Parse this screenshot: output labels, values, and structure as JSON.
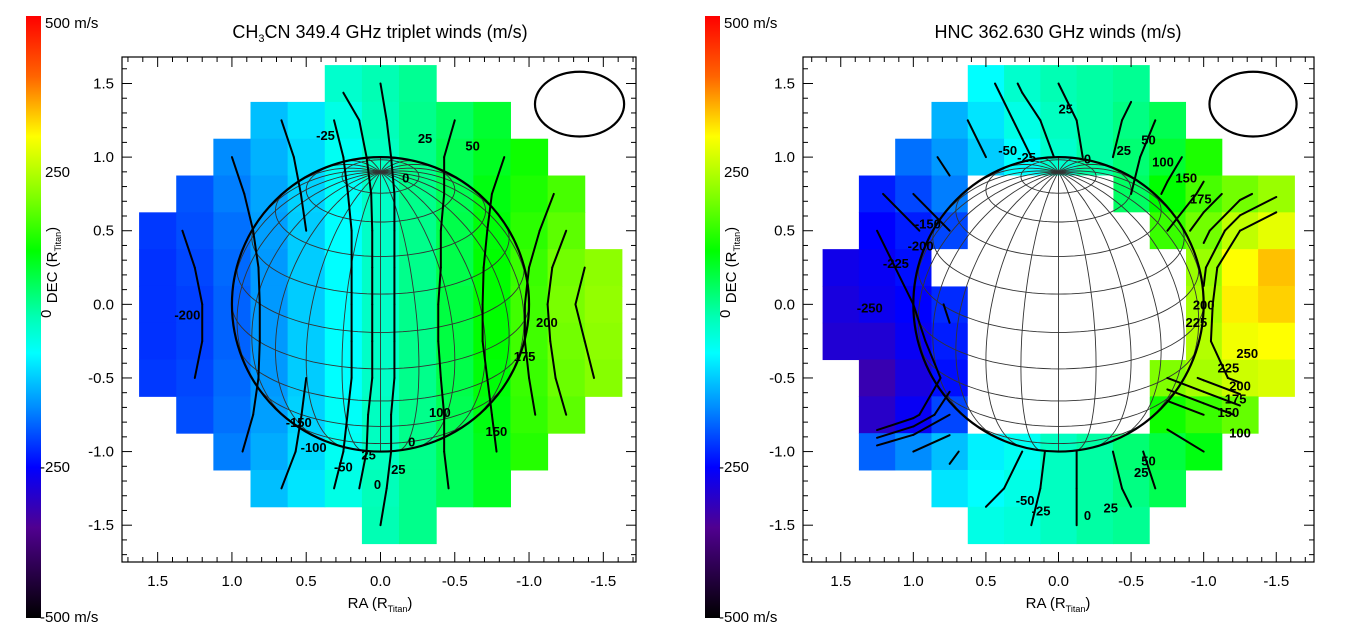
{
  "chart_data": [
    {
      "type": "heatmap",
      "title": "CH3CN 349.4 GHz triplet winds (m/s)",
      "title_parts": {
        "pre": "CH",
        "sub": "3",
        "post": "CN 349.4 GHz triplet winds (m/s)"
      },
      "xlabel": "RA (R",
      "xlabel_sub": "Titan",
      "xlabel_close": ")",
      "ylabel": "DEC (R",
      "ylabel_sub": "Titan",
      "ylabel_close": ")",
      "xlim": [
        1.74,
        -1.72
      ],
      "ylim": [
        -1.75,
        1.68
      ],
      "xticks": [
        "1.5",
        "1.0",
        "0.5",
        "0.0",
        "-0.5",
        "-1.0",
        "-1.5"
      ],
      "xtick_values": [
        1.5,
        1.0,
        0.5,
        0.0,
        -0.5,
        -1.0,
        -1.5
      ],
      "yticks": [
        "1.5",
        "1.0",
        "0.5",
        "0.0",
        "-0.5",
        "-1.0",
        "-1.5"
      ],
      "ytick_values": [
        1.5,
        1.0,
        0.5,
        0.0,
        -0.5,
        -1.0,
        -1.5
      ],
      "colorbar": {
        "labels": [
          "500 m/s",
          "250",
          "0",
          "-250",
          "-500 m/s"
        ],
        "range": [
          -500,
          500
        ]
      },
      "grid_ra": [
        1.5,
        1.25,
        1.0,
        0.75,
        0.5,
        0.25,
        0,
        -0.25,
        -0.5,
        -0.75,
        -1.0,
        -1.25,
        -1.5
      ],
      "grid_dec": [
        1.5,
        1.25,
        1.0,
        0.75,
        0.5,
        0.25,
        0,
        -0.25,
        -0.5,
        -0.75,
        -1.0,
        -1.25,
        -1.5
      ],
      "values": [
        [
          null,
          null,
          null,
          null,
          null,
          -20,
          0,
          20,
          null,
          null,
          null,
          null,
          null
        ],
        [
          null,
          null,
          null,
          -110,
          -80,
          -40,
          -5,
          25,
          50,
          80,
          null,
          null,
          null
        ],
        [
          null,
          null,
          -150,
          -120,
          -90,
          -50,
          -10,
          25,
          60,
          90,
          120,
          null,
          null
        ],
        [
          null,
          -190,
          -160,
          -130,
          -95,
          -55,
          -15,
          25,
          60,
          100,
          130,
          160,
          null
        ],
        [
          -210,
          -195,
          -170,
          -135,
          -100,
          -60,
          -15,
          25,
          65,
          105,
          140,
          175,
          null
        ],
        [
          -215,
          -200,
          -175,
          -140,
          -100,
          -60,
          -15,
          25,
          65,
          110,
          150,
          190,
          210
        ],
        [
          -215,
          -205,
          -180,
          -140,
          -100,
          -60,
          -15,
          25,
          70,
          110,
          155,
          195,
          215
        ],
        [
          -215,
          -205,
          -180,
          -140,
          -100,
          -60,
          -15,
          25,
          70,
          110,
          155,
          190,
          210
        ],
        [
          -210,
          -200,
          -175,
          -140,
          -100,
          -60,
          -15,
          25,
          65,
          105,
          150,
          185,
          205
        ],
        [
          null,
          -195,
          -170,
          -135,
          -95,
          -55,
          -10,
          25,
          60,
          100,
          145,
          175,
          null
        ],
        [
          null,
          null,
          -160,
          -125,
          -90,
          -50,
          -10,
          25,
          60,
          95,
          135,
          null,
          null
        ],
        [
          null,
          null,
          null,
          -110,
          -80,
          -40,
          -5,
          25,
          55,
          90,
          null,
          null,
          null
        ],
        [
          null,
          null,
          null,
          null,
          null,
          null,
          0,
          25,
          null,
          null,
          null,
          null,
          null
        ]
      ],
      "contour_levels": [
        -200,
        -150,
        -100,
        -50,
        -25,
        0,
        25,
        50,
        100,
        150,
        175,
        200
      ],
      "contour_labels": [
        {
          "text": "-25",
          "ra": 0.37,
          "dec": 1.15
        },
        {
          "text": "25",
          "ra": -0.3,
          "dec": 1.13
        },
        {
          "text": "50",
          "ra": -0.62,
          "dec": 1.08
        },
        {
          "text": "0",
          "ra": -0.17,
          "dec": 0.86
        },
        {
          "text": "-200",
          "ra": 1.3,
          "dec": -0.07
        },
        {
          "text": "200",
          "ra": -1.12,
          "dec": -0.12
        },
        {
          "text": "175",
          "ra": -0.97,
          "dec": -0.35
        },
        {
          "text": "100",
          "ra": -0.4,
          "dec": -0.73
        },
        {
          "text": "150",
          "ra": -0.78,
          "dec": -0.86
        },
        {
          "text": "-150",
          "ra": 0.55,
          "dec": -0.8
        },
        {
          "text": "-100",
          "ra": 0.45,
          "dec": -0.97
        },
        {
          "text": "-50",
          "ra": 0.25,
          "dec": -1.1
        },
        {
          "text": "25",
          "ra": 0.08,
          "dec": -1.02
        },
        {
          "text": "0",
          "ra": 0.02,
          "dec": -1.22
        },
        {
          "text": "25",
          "ra": -0.12,
          "dec": -1.12
        },
        {
          "text": "0",
          "ra": -0.21,
          "dec": -0.93
        }
      ],
      "disk_masked": false
    },
    {
      "type": "heatmap",
      "title": "HNC 362.630 GHz winds (m/s)",
      "title_parts": {
        "pre": "HNC 362.630 GHz winds (m/s)",
        "sub": "",
        "post": ""
      },
      "xlabel": "RA (R",
      "xlabel_sub": "Titan",
      "xlabel_close": ")",
      "ylabel": "DEC (R",
      "ylabel_sub": "Titan",
      "ylabel_close": ")",
      "xlim": [
        1.76,
        -1.76
      ],
      "ylim": [
        -1.75,
        1.68
      ],
      "xticks": [
        "1.5",
        "1.0",
        "0.5",
        "0.0",
        "-0.5",
        "-1.0",
        "-1.5"
      ],
      "xtick_values": [
        1.5,
        1.0,
        0.5,
        0.0,
        -0.5,
        -1.0,
        -1.5
      ],
      "yticks": [
        "1.5",
        "1.0",
        "0.5",
        "0.0",
        "-0.5",
        "-1.0",
        "-1.5"
      ],
      "ytick_values": [
        1.5,
        1.0,
        0.5,
        0.0,
        -0.5,
        -1.0,
        -1.5
      ],
      "colorbar": {
        "labels": [
          "500 m/s",
          "250",
          "0",
          "-250",
          "-500 m/s"
        ],
        "range": [
          -500,
          500
        ]
      },
      "grid_ra": [
        1.5,
        1.25,
        1.0,
        0.75,
        0.5,
        0.25,
        0,
        -0.25,
        -0.5,
        -0.75,
        -1.0,
        -1.25,
        -1.5
      ],
      "grid_dec": [
        1.5,
        1.25,
        1.0,
        0.75,
        0.5,
        0.25,
        0,
        -0.25,
        -0.5,
        -0.75,
        -1.0,
        -1.25,
        -1.5
      ],
      "values": [
        [
          null,
          null,
          null,
          null,
          -60,
          -20,
          0,
          10,
          20,
          null,
          null,
          null,
          null
        ],
        [
          null,
          null,
          null,
          -120,
          -80,
          -40,
          -10,
          10,
          30,
          60,
          null,
          null,
          null
        ],
        [
          null,
          null,
          -170,
          -140,
          -100,
          -60,
          -20,
          10,
          40,
          80,
          130,
          null,
          null
        ],
        [
          null,
          -230,
          -200,
          -160,
          null,
          null,
          null,
          null,
          50,
          110,
          160,
          190,
          220
        ],
        [
          null,
          -250,
          -230,
          -200,
          null,
          null,
          null,
          null,
          null,
          150,
          190,
          250,
          280
        ],
        [
          -270,
          -260,
          -240,
          null,
          null,
          null,
          null,
          null,
          null,
          null,
          220,
          300,
          340
        ],
        [
          -280,
          -265,
          -250,
          -220,
          null,
          null,
          null,
          null,
          null,
          null,
          230,
          310,
          330
        ],
        [
          -290,
          -290,
          -260,
          -230,
          null,
          null,
          null,
          null,
          null,
          null,
          240,
          290,
          300
        ],
        [
          null,
          -320,
          -280,
          -240,
          null,
          null,
          null,
          null,
          null,
          200,
          230,
          260,
          270
        ],
        [
          null,
          -300,
          -260,
          -200,
          null,
          null,
          null,
          null,
          null,
          120,
          150,
          180,
          null
        ],
        [
          null,
          -180,
          -150,
          -110,
          -70,
          -50,
          -10,
          10,
          40,
          70,
          100,
          null,
          null
        ],
        [
          null,
          null,
          null,
          -80,
          -60,
          -40,
          -10,
          10,
          30,
          60,
          null,
          null,
          null
        ],
        [
          null,
          null,
          null,
          null,
          -40,
          -30,
          -10,
          10,
          20,
          null,
          null,
          null,
          null
        ]
      ],
      "contour_levels": [
        -250,
        -225,
        -200,
        -150,
        -100,
        -50,
        -25,
        0,
        25,
        50,
        100,
        150,
        175,
        200,
        225,
        250
      ],
      "contour_labels": [
        {
          "text": "25",
          "ra": -0.05,
          "dec": 1.33
        },
        {
          "text": "-50",
          "ra": 0.35,
          "dec": 1.05
        },
        {
          "text": "-25",
          "ra": 0.22,
          "dec": 1.0
        },
        {
          "text": "0",
          "ra": -0.2,
          "dec": 0.99
        },
        {
          "text": "25",
          "ra": -0.45,
          "dec": 1.05
        },
        {
          "text": "50",
          "ra": -0.62,
          "dec": 1.12
        },
        {
          "text": "100",
          "ra": -0.72,
          "dec": 0.97
        },
        {
          "text": "150",
          "ra": -0.88,
          "dec": 0.86
        },
        {
          "text": "175",
          "ra": -0.98,
          "dec": 0.72
        },
        {
          "text": "-150",
          "ra": 0.9,
          "dec": 0.55
        },
        {
          "text": "-200",
          "ra": 0.95,
          "dec": 0.4
        },
        {
          "text": "-225",
          "ra": 1.12,
          "dec": 0.28
        },
        {
          "text": "-250",
          "ra": 1.3,
          "dec": -0.02
        },
        {
          "text": "200",
          "ra": -1.0,
          "dec": 0.0
        },
        {
          "text": "225",
          "ra": -0.95,
          "dec": -0.12
        },
        {
          "text": "250",
          "ra": -1.3,
          "dec": -0.33
        },
        {
          "text": "225",
          "ra": -1.17,
          "dec": -0.43
        },
        {
          "text": "200",
          "ra": -1.25,
          "dec": -0.55
        },
        {
          "text": "175",
          "ra": -1.22,
          "dec": -0.64
        },
        {
          "text": "150",
          "ra": -1.17,
          "dec": -0.73
        },
        {
          "text": "100",
          "ra": -1.25,
          "dec": -0.87
        },
        {
          "text": "50",
          "ra": -0.62,
          "dec": -1.06
        },
        {
          "text": "25",
          "ra": -0.57,
          "dec": -1.14
        },
        {
          "text": "-50",
          "ra": 0.23,
          "dec": -1.33
        },
        {
          "text": "-25",
          "ra": 0.12,
          "dec": -1.4
        },
        {
          "text": "0",
          "ra": -0.2,
          "dec": -1.43
        },
        {
          "text": "25",
          "ra": -0.36,
          "dec": -1.38
        }
      ],
      "disk_masked": true
    }
  ],
  "colors": {
    "colormap": [
      "#000000",
      "#500090",
      "#0000ff",
      "#008cff",
      "#00ffff",
      "#00ffb4",
      "#00ff00",
      "#80ff00",
      "#ffff00",
      "#ff6400",
      "#ff0000"
    ],
    "contour": "#000000",
    "globe_grid": "#333333"
  }
}
